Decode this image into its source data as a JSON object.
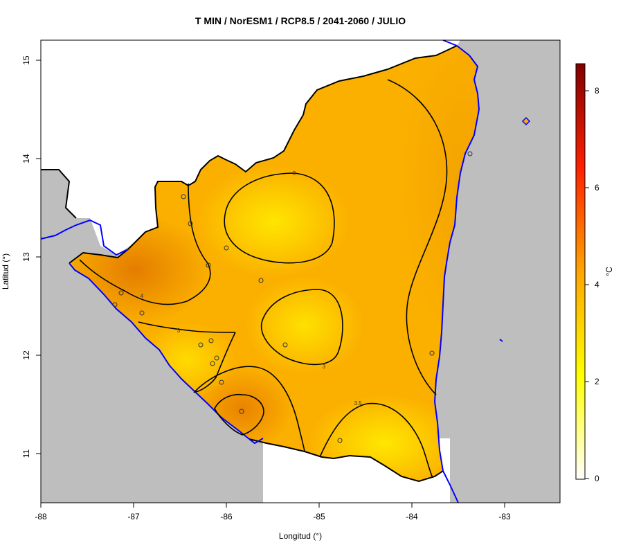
{
  "title": "T MIN / NorESM1 / RCP8.5 / 2041-2060 / JULIO",
  "x_axis": {
    "label": "Longitud (°)",
    "ticks": [
      "-88",
      "-87",
      "-86",
      "-85",
      "-84",
      "-83"
    ]
  },
  "y_axis": {
    "label": "Latitud (°)",
    "ticks": [
      "15",
      "14",
      "13",
      "12",
      "11"
    ]
  },
  "colorbar": {
    "unit": "°C",
    "ticks": [
      "8",
      "6",
      "4",
      "2",
      "0"
    ]
  },
  "contour_labels": [
    "3",
    "4",
    "3",
    "3",
    "3.5"
  ],
  "colors": {
    "ocean": "#bebebe",
    "coast": "#0000ff",
    "land_base": "#ffb300",
    "hot": "#e07000",
    "cool": "#ffe800"
  }
}
